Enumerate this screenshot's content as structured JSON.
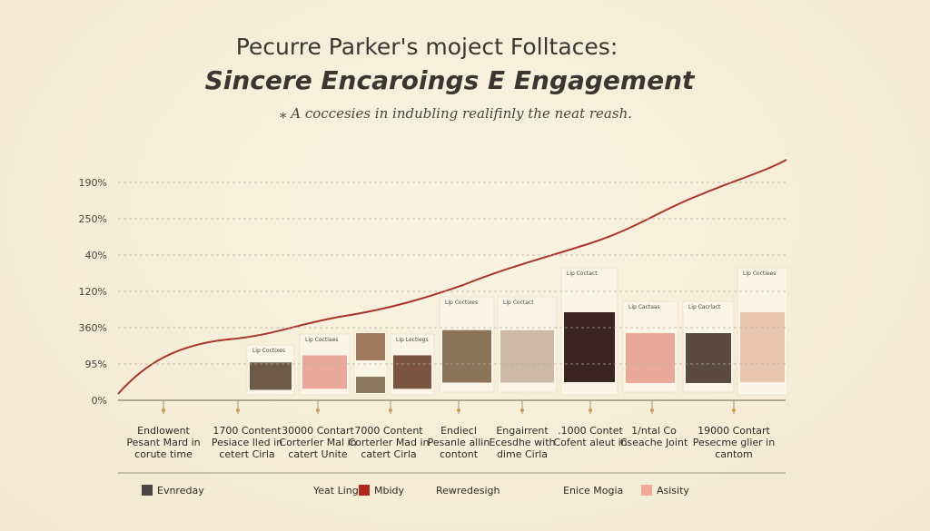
{
  "header": {
    "title": "Pecurre Parker's moject Folltaces:",
    "subtitle": "Sincere Encaroings E Engagement",
    "tagline": "⁎ A coccesies in indubling realifinly the neat reash."
  },
  "y_axis_labels": [
    "190%",
    "250%",
    "40%",
    "120%",
    "360%",
    "95%",
    "0%"
  ],
  "milestones": [
    [
      "Endlowent",
      "Pesant Mard in",
      "corute time"
    ],
    [
      "1700 Content",
      "Pesiace lled in",
      "cetert Cirla"
    ],
    [
      "30000 Contart",
      "Corterler Mal in",
      "catert Unite"
    ],
    [
      "7000 Content",
      "Corterler Mad in",
      "catert Cirla"
    ],
    [
      "Endiecl",
      "Pesanle allin",
      "contont"
    ],
    [
      "Engairrent",
      "Ecesdhe with",
      "dime Cirla"
    ],
    [
      ".1000 Contet",
      "Cofent aleut in"
    ],
    [
      "1/ntal Co",
      "Cseache Joint"
    ],
    [
      "19000 Contart",
      "Pesecme glier in",
      "cantom"
    ]
  ],
  "cards": [
    "Lip Coctixes",
    "Lip Coctiaes",
    "Lip Lectiegs",
    "Lip Coctixes",
    "Lip Coctact",
    "Lip Coctact",
    "Lip Cactaas",
    "Lip Cacrlact",
    "Lip Coctiees"
  ],
  "legend": [
    "Evnreday",
    "Yeat Lingis",
    "Mbidy",
    "Rewredesigh",
    "Enice Mogia",
    "Asisity"
  ]
}
